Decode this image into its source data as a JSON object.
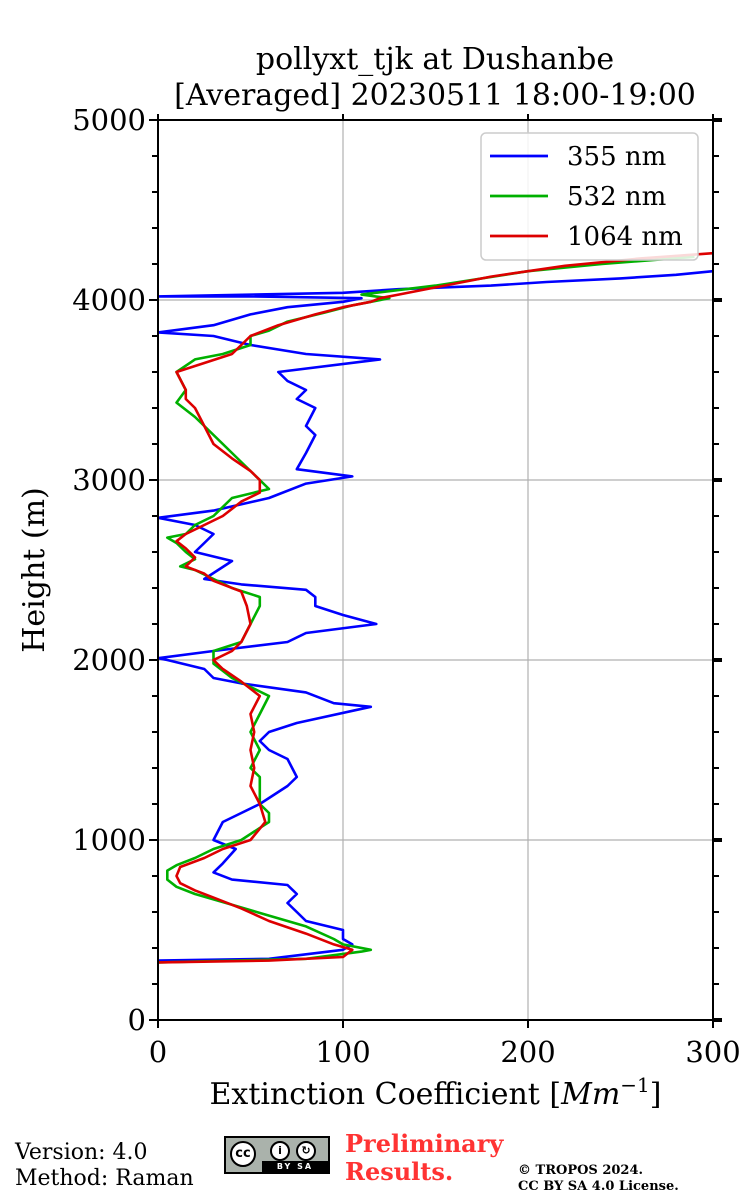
{
  "chart_data": {
    "type": "line",
    "title_line1": "pollyxt_tjk at Dushanbe",
    "title_line2": "[Averaged] 20230511 18:00-19:00",
    "xlabel_text": "Extinction Coefficient [",
    "xlabel_unit": "Mm",
    "xlabel_exp": "−1",
    "xlabel_close": "]",
    "ylabel": "Height (m)",
    "xlim": [
      0,
      300
    ],
    "ylim": [
      0,
      5000
    ],
    "xticks": [
      0,
      100,
      200,
      300
    ],
    "yticks": [
      0,
      1000,
      2000,
      3000,
      4000,
      5000
    ],
    "xticklabels": [
      "0",
      "100",
      "200",
      "300"
    ],
    "yticklabels": [
      "0",
      "1000",
      "2000",
      "3000",
      "4000",
      "5000"
    ],
    "grid": true,
    "legend_position": "top-right",
    "series": [
      {
        "name": "355 nm",
        "color": "#0000ff",
        "points": [
          [
            0,
            330
          ],
          [
            60,
            340
          ],
          [
            100,
            390
          ],
          [
            105,
            420
          ],
          [
            100,
            450
          ],
          [
            100,
            500
          ],
          [
            80,
            550
          ],
          [
            75,
            600
          ],
          [
            70,
            650
          ],
          [
            75,
            700
          ],
          [
            70,
            750
          ],
          [
            40,
            780
          ],
          [
            30,
            820
          ],
          [
            35,
            870
          ],
          [
            42,
            950
          ],
          [
            30,
            1000
          ],
          [
            35,
            1100
          ],
          [
            45,
            1150
          ],
          [
            55,
            1200
          ],
          [
            70,
            1300
          ],
          [
            75,
            1350
          ],
          [
            70,
            1450
          ],
          [
            60,
            1500
          ],
          [
            55,
            1550
          ],
          [
            60,
            1600
          ],
          [
            75,
            1650
          ],
          [
            115,
            1740
          ],
          [
            95,
            1760
          ],
          [
            80,
            1820
          ],
          [
            45,
            1870
          ],
          [
            30,
            1900
          ],
          [
            25,
            1950
          ],
          [
            5,
            2000
          ],
          [
            0,
            2010
          ],
          [
            30,
            2050
          ],
          [
            70,
            2100
          ],
          [
            80,
            2150
          ],
          [
            118,
            2200
          ],
          [
            100,
            2250
          ],
          [
            85,
            2300
          ],
          [
            85,
            2350
          ],
          [
            80,
            2390
          ],
          [
            45,
            2420
          ],
          [
            25,
            2450
          ],
          [
            40,
            2550
          ],
          [
            20,
            2600
          ],
          [
            25,
            2650
          ],
          [
            30,
            2700
          ],
          [
            20,
            2750
          ],
          [
            0,
            2790
          ],
          [
            30,
            2830
          ],
          [
            60,
            2900
          ],
          [
            80,
            2980
          ],
          [
            105,
            3020
          ],
          [
            75,
            3060
          ],
          [
            80,
            3150
          ],
          [
            85,
            3250
          ],
          [
            80,
            3300
          ],
          [
            85,
            3400
          ],
          [
            75,
            3450
          ],
          [
            80,
            3500
          ],
          [
            70,
            3550
          ],
          [
            65,
            3600
          ],
          [
            120,
            3670
          ],
          [
            80,
            3700
          ],
          [
            50,
            3750
          ],
          [
            30,
            3800
          ],
          [
            0,
            3820
          ],
          [
            30,
            3860
          ],
          [
            50,
            3920
          ],
          [
            70,
            3960
          ],
          [
            100,
            3990
          ],
          [
            110,
            4010
          ],
          [
            50,
            4020
          ],
          [
            0,
            4020
          ],
          [
            100,
            4040
          ],
          [
            130,
            4060
          ],
          [
            180,
            4080
          ],
          [
            210,
            4100
          ],
          [
            250,
            4120
          ],
          [
            280,
            4140
          ],
          [
            300,
            4160
          ]
        ]
      },
      {
        "name": "532 nm",
        "color": "#00b000",
        "points": [
          [
            0,
            320
          ],
          [
            80,
            340
          ],
          [
            110,
            380
          ],
          [
            115,
            390
          ],
          [
            100,
            420
          ],
          [
            95,
            450
          ],
          [
            80,
            520
          ],
          [
            60,
            580
          ],
          [
            40,
            640
          ],
          [
            20,
            700
          ],
          [
            10,
            740
          ],
          [
            5,
            780
          ],
          [
            5,
            830
          ],
          [
            10,
            860
          ],
          [
            20,
            900
          ],
          [
            30,
            950
          ],
          [
            45,
            1000
          ],
          [
            60,
            1100
          ],
          [
            60,
            1150
          ],
          [
            55,
            1200
          ],
          [
            55,
            1350
          ],
          [
            50,
            1400
          ],
          [
            55,
            1500
          ],
          [
            50,
            1600
          ],
          [
            55,
            1700
          ],
          [
            60,
            1800
          ],
          [
            40,
            1900
          ],
          [
            30,
            1980
          ],
          [
            30,
            2050
          ],
          [
            45,
            2100
          ],
          [
            50,
            2200
          ],
          [
            55,
            2300
          ],
          [
            55,
            2350
          ],
          [
            40,
            2400
          ],
          [
            30,
            2450
          ],
          [
            20,
            2500
          ],
          [
            12,
            2520
          ],
          [
            20,
            2560
          ],
          [
            15,
            2600
          ],
          [
            10,
            2650
          ],
          [
            5,
            2680
          ],
          [
            15,
            2700
          ],
          [
            20,
            2750
          ],
          [
            30,
            2800
          ],
          [
            40,
            2900
          ],
          [
            60,
            2950
          ],
          [
            55,
            3000
          ],
          [
            50,
            3050
          ],
          [
            40,
            3150
          ],
          [
            35,
            3200
          ],
          [
            25,
            3300
          ],
          [
            20,
            3350
          ],
          [
            10,
            3430
          ],
          [
            15,
            3500
          ],
          [
            10,
            3600
          ],
          [
            20,
            3670
          ],
          [
            35,
            3700
          ],
          [
            50,
            3750
          ],
          [
            50,
            3800
          ],
          [
            60,
            3830
          ],
          [
            70,
            3880
          ],
          [
            90,
            3930
          ],
          [
            105,
            3970
          ],
          [
            115,
            3990
          ],
          [
            125,
            4010
          ],
          [
            110,
            4030
          ],
          [
            150,
            4080
          ],
          [
            200,
            4160
          ],
          [
            240,
            4200
          ],
          [
            290,
            4240
          ]
        ]
      },
      {
        "name": "1064 nm",
        "color": "#dd0000",
        "points": [
          [
            0,
            320
          ],
          [
            60,
            330
          ],
          [
            100,
            350
          ],
          [
            105,
            390
          ],
          [
            95,
            420
          ],
          [
            80,
            480
          ],
          [
            60,
            550
          ],
          [
            45,
            620
          ],
          [
            30,
            680
          ],
          [
            20,
            720
          ],
          [
            12,
            760
          ],
          [
            10,
            800
          ],
          [
            12,
            850
          ],
          [
            25,
            900
          ],
          [
            35,
            950
          ],
          [
            50,
            1000
          ],
          [
            58,
            1100
          ],
          [
            55,
            1200
          ],
          [
            50,
            1300
          ],
          [
            52,
            1400
          ],
          [
            50,
            1500
          ],
          [
            52,
            1600
          ],
          [
            50,
            1700
          ],
          [
            55,
            1800
          ],
          [
            45,
            1880
          ],
          [
            35,
            1950
          ],
          [
            30,
            2000
          ],
          [
            40,
            2050
          ],
          [
            45,
            2100
          ],
          [
            50,
            2200
          ],
          [
            48,
            2300
          ],
          [
            45,
            2380
          ],
          [
            30,
            2440
          ],
          [
            25,
            2480
          ],
          [
            15,
            2520
          ],
          [
            20,
            2570
          ],
          [
            15,
            2620
          ],
          [
            10,
            2660
          ],
          [
            15,
            2700
          ],
          [
            25,
            2750
          ],
          [
            35,
            2800
          ],
          [
            45,
            2880
          ],
          [
            55,
            2930
          ],
          [
            55,
            3000
          ],
          [
            50,
            3050
          ],
          [
            40,
            3120
          ],
          [
            30,
            3200
          ],
          [
            25,
            3300
          ],
          [
            20,
            3400
          ],
          [
            15,
            3450
          ],
          [
            15,
            3500
          ],
          [
            10,
            3600
          ],
          [
            25,
            3650
          ],
          [
            40,
            3700
          ],
          [
            45,
            3750
          ],
          [
            50,
            3800
          ],
          [
            65,
            3860
          ],
          [
            85,
            3920
          ],
          [
            100,
            3960
          ],
          [
            115,
            3990
          ],
          [
            120,
            4010
          ],
          [
            130,
            4030
          ],
          [
            150,
            4070
          ],
          [
            180,
            4130
          ],
          [
            220,
            4190
          ],
          [
            260,
            4230
          ],
          [
            300,
            4260
          ]
        ]
      }
    ]
  },
  "footer": {
    "version": "Version: 4.0",
    "method": "Method: Raman",
    "preliminary_line1": "Preliminary",
    "preliminary_line2": "Results.",
    "copyright_line1": "© TROPOS 2024.",
    "copyright_line2": "CC BY SA 4.0 License.",
    "license_badge_cc": "cc",
    "license_badge_by": "BY",
    "license_badge_sa": "SA"
  }
}
